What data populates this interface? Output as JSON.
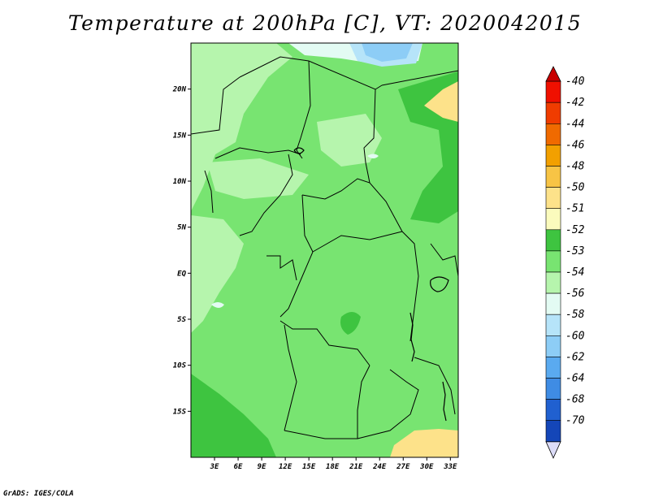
{
  "title": "Temperature at 200hPa [C], VT: 2020042015",
  "credit": "GrADS: IGES/COLA",
  "map": {
    "region": "Central Africa",
    "lon_range": [
      0,
      34
    ],
    "lat_range": [
      -20,
      25
    ],
    "lat_ticks": [
      {
        "value": 20,
        "label": "20N"
      },
      {
        "value": 15,
        "label": "15N"
      },
      {
        "value": 10,
        "label": "10N"
      },
      {
        "value": 5,
        "label": "5N"
      },
      {
        "value": 0,
        "label": "EQ"
      },
      {
        "value": -5,
        "label": "5S"
      },
      {
        "value": -10,
        "label": "10S"
      },
      {
        "value": -15,
        "label": "15S"
      }
    ],
    "lon_ticks": [
      {
        "value": 3,
        "label": "3E"
      },
      {
        "value": 6,
        "label": "6E"
      },
      {
        "value": 9,
        "label": "9E"
      },
      {
        "value": 12,
        "label": "12E"
      },
      {
        "value": 15,
        "label": "15E"
      },
      {
        "value": 18,
        "label": "18E"
      },
      {
        "value": 21,
        "label": "21E"
      },
      {
        "value": 24,
        "label": "24E"
      },
      {
        "value": 27,
        "label": "27E"
      },
      {
        "value": 30,
        "label": "30E"
      },
      {
        "value": 33,
        "label": "33E"
      }
    ]
  },
  "colorbar": {
    "levels": [
      {
        "label": "-40",
        "color": "#f01000"
      },
      {
        "label": "-42",
        "color": "#f03c00"
      },
      {
        "label": "-44",
        "color": "#f06a00"
      },
      {
        "label": "-46",
        "color": "#f2a000"
      },
      {
        "label": "-48",
        "color": "#f7c445"
      },
      {
        "label": "-50",
        "color": "#fde28a"
      },
      {
        "label": "-51",
        "color": "#fbfbbd"
      },
      {
        "label": "-52",
        "color": "#3ec440"
      },
      {
        "label": "-53",
        "color": "#78e471"
      },
      {
        "label": "-54",
        "color": "#b6f5ad"
      },
      {
        "label": "-56",
        "color": "#e3fbf3"
      },
      {
        "label": "-58",
        "color": "#b6e4f9"
      },
      {
        "label": "-60",
        "color": "#8dcdf6"
      },
      {
        "label": "-62",
        "color": "#5aaaf0"
      },
      {
        "label": "-64",
        "color": "#3f8ce4"
      },
      {
        "label": "-68",
        "color": "#2060d0"
      },
      {
        "label": "-70",
        "color": "#1446b8"
      }
    ],
    "top_color": "#c80000",
    "bottom_color": "#0a1a70",
    "under_color": "#dcdcf8"
  }
}
